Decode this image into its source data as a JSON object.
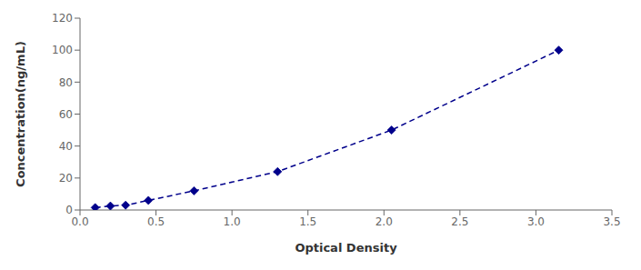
{
  "chart_data": {
    "type": "line",
    "x": [
      0.1,
      0.2,
      0.3,
      0.45,
      0.75,
      1.3,
      2.05,
      3.15
    ],
    "values": [
      1.5,
      2.5,
      3.0,
      6.0,
      12.0,
      24.0,
      50.0,
      100.0
    ],
    "color": "#00008B",
    "marker": "diamond",
    "line_style": "dashed",
    "xlabel": "Optical Density",
    "ylabel": "Concentration(ng/mL)",
    "xlim": [
      0,
      3.5
    ],
    "ylim": [
      0,
      120
    ],
    "xticks": [
      {
        "value": 0,
        "label": "0.0"
      },
      0.5,
      {
        "value": 1.0,
        "label": "1.0"
      },
      1.5,
      {
        "value": 2.0,
        "label": "2.0"
      },
      2.5,
      {
        "value": 3.0,
        "label": "3.0"
      },
      3.5
    ],
    "yticks": [
      0,
      20,
      40,
      60,
      80,
      100,
      120
    ],
    "grid": false
  }
}
